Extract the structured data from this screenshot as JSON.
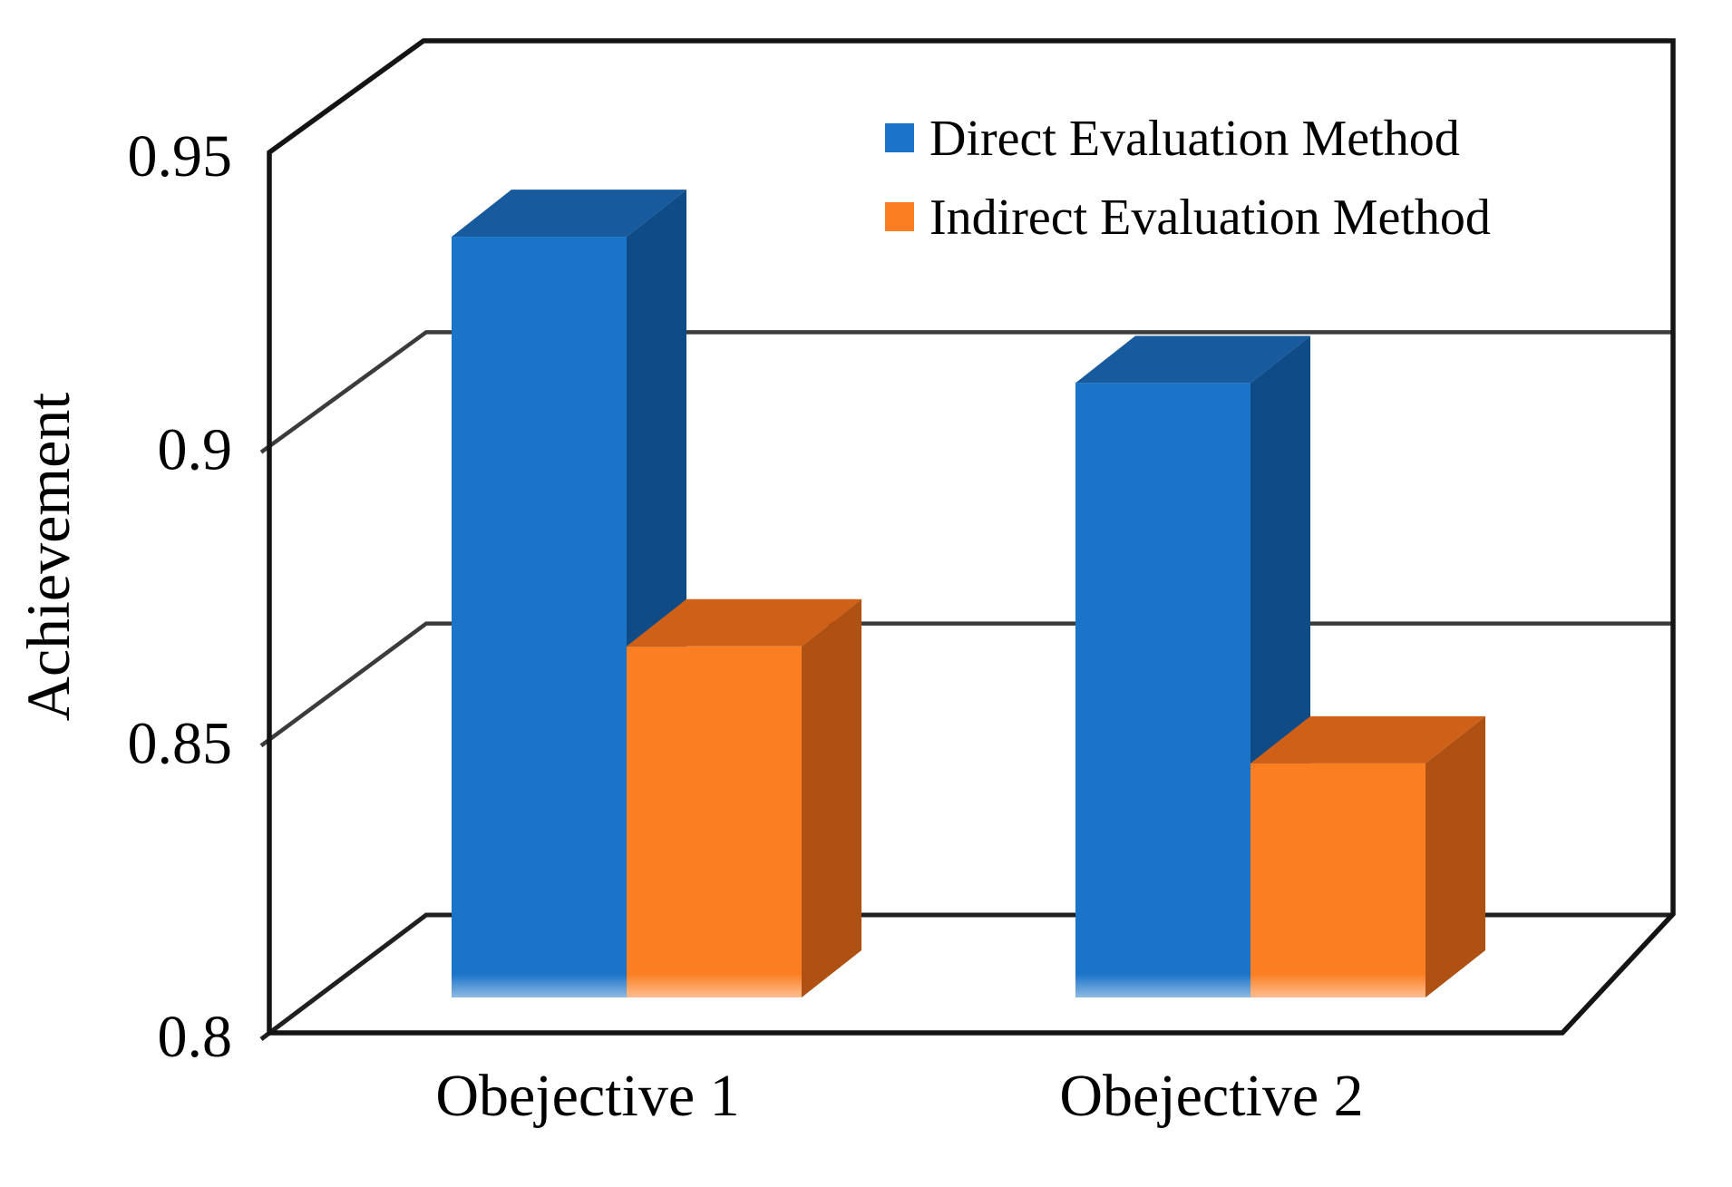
{
  "chart_data": {
    "type": "bar",
    "style": "3d-clustered-column",
    "title": "",
    "xlabel": "",
    "ylabel": "Achievement",
    "ylim": [
      0.8,
      0.95
    ],
    "grid": true,
    "legend_position": "top-right",
    "categories": [
      "Obejective 1",
      "Obejective 2"
    ],
    "series": [
      {
        "name": "Direct Evaluation Method",
        "values": [
          0.93,
          0.905
        ],
        "color_front": "#1B74C8",
        "color_top": "#175A9D",
        "color_side": "#0F4C87"
      },
      {
        "name": "Indirect Evaluation Method",
        "values": [
          0.86,
          0.84
        ],
        "color_front": "#FB7E23",
        "color_top": "#CF6017",
        "color_side": "#AE5112"
      }
    ],
    "yticks": [
      {
        "value": 0.8,
        "label": "0.8"
      },
      {
        "value": 0.85,
        "label": "0.85"
      },
      {
        "value": 0.9,
        "label": "0.9"
      },
      {
        "value": 0.95,
        "label": "0.95"
      }
    ],
    "frame_color": "#141414",
    "gridline_color": "#3b3b3b",
    "background_color": "#ffffff"
  }
}
